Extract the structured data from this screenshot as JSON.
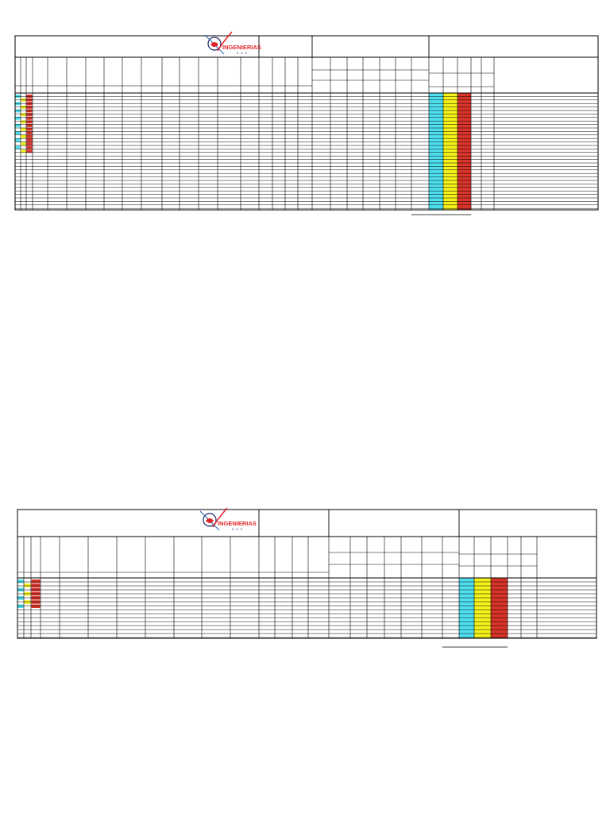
{
  "logo": {
    "brand_text": "INGENIERIAS",
    "sub_text": "S.A.S",
    "colors": {
      "red": "#e0262b",
      "navy": "#1f2a6b",
      "blue": "#2f5fb3"
    }
  },
  "palette": {
    "cyan": "#4fe0ef",
    "yellow": "#f6f21a",
    "red": "#d9342b",
    "grid": "#000000"
  },
  "sheets": [
    {
      "id": "sheet-1",
      "marker_rows": [
        [
          "cyan",
          "yellow",
          "red"
        ],
        [
          "cyan",
          "yellow",
          "red"
        ],
        [
          "cyan",
          "yellow",
          "red"
        ],
        [
          "cyan",
          "yellow",
          "red"
        ],
        [
          "cyan",
          "yellow",
          "red"
        ],
        [
          "cyan",
          "yellow",
          "red"
        ],
        [
          "cyan",
          "yellow",
          "red"
        ],
        [
          "cyan",
          "yellow",
          "red"
        ],
        [
          "cyan",
          "yellow",
          "red"
        ],
        [
          "cyan",
          "yellow",
          "red"
        ],
        [
          "cyan",
          "yellow",
          "red"
        ],
        [
          "cyan",
          "yellow",
          "red"
        ],
        [
          "cyan",
          "yellow",
          "red"
        ],
        [
          "cyan",
          "yellow",
          "red"
        ],
        [
          "cyan",
          "yellow",
          "red"
        ],
        [
          "cyan",
          "yellow",
          "red"
        ]
      ]
    },
    {
      "id": "sheet-2",
      "marker_rows": [
        [
          "cyan",
          "yellow",
          "red"
        ],
        [
          "cyan",
          "yellow",
          "red"
        ],
        [
          "cyan",
          "yellow",
          "red"
        ],
        [
          "cyan",
          "yellow",
          "red"
        ],
        [
          "cyan",
          "yellow",
          "red"
        ],
        [
          "cyan",
          "yellow",
          "red"
        ],
        [
          "cyan",
          "yellow",
          "red"
        ]
      ]
    }
  ]
}
